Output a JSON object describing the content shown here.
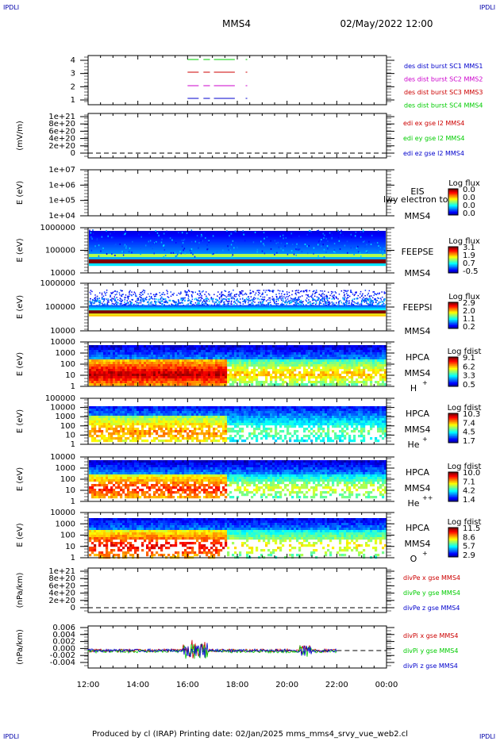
{
  "header": {
    "title": "MMS4",
    "date": "02/May/2022 12:00",
    "corner": "IPDLI"
  },
  "footer": {
    "text": "Produced by cl (IRAP)   Printing date: 02/Jan/2025   mms_mms4_srvy_vue_web2.cl"
  },
  "colors": {
    "blue": "#0000cc",
    "magenta": "#cc00cc",
    "red": "#cc0000",
    "green": "#00cc00"
  },
  "chart_data": {
    "type": "heatmap",
    "x_ticks": [
      "12:00",
      "14:00",
      "16:00",
      "18:00",
      "20:00",
      "22:00",
      "00:00"
    ],
    "panels": [
      {
        "id": "des",
        "type": "line",
        "yticks": [
          "4",
          "3",
          "2",
          "1"
        ],
        "legend": [
          "des dist burst SC1 MMS1",
          "des dist burst SC2 MMS2",
          "des dist burst SC3 MMS3",
          "des dist burst SC4 MMS4"
        ],
        "series": [
          {
            "level": 4,
            "x": [
              16.0,
              18.4
            ]
          },
          {
            "level": 3,
            "x": [
              16.0,
              18.4
            ]
          },
          {
            "level": 2,
            "x": [
              16.0,
              18.4
            ]
          },
          {
            "level": 1,
            "x": [
              16.0,
              18.4
            ]
          }
        ]
      },
      {
        "id": "edi",
        "type": "line",
        "ylabel": "(mV/m)",
        "yticks": [
          "1e+21",
          "8e+20",
          "6e+20",
          "4e+20",
          "2e+20",
          "0"
        ],
        "legend": [
          "edi ex gse l2 MMS4",
          "edi ey gse l2 MMS4",
          "edi ez gse l2 MMS4"
        ]
      },
      {
        "id": "eis",
        "type": "heatmap",
        "ylabel": "E (eV)",
        "yticks": [
          "1e+07",
          "1e+06",
          "1e+05",
          "1e+04"
        ],
        "inst": "EIS",
        "extra": "lwy electron to",
        "sc": "MMS4",
        "cbar_title": "Log flux",
        "cbar_ticks": [
          "0.0",
          "0.0",
          "0.0",
          "0.0"
        ]
      },
      {
        "id": "feepse",
        "type": "heatmap",
        "ylabel": "E (eV)",
        "yticks": [
          "1000000",
          "100000",
          "10000"
        ],
        "inst": "FEEPSE",
        "sc": "MMS4",
        "cbar_title": "Log flux",
        "cbar_ticks": [
          "3.1",
          "1.9",
          "0.7",
          "-0.5"
        ]
      },
      {
        "id": "feepsi",
        "type": "heatmap",
        "ylabel": "E (eV)",
        "yticks": [
          "1000000",
          "100000",
          "10000"
        ],
        "inst": "FEEPSI",
        "sc": "MMS4",
        "cbar_title": "Log flux",
        "cbar_ticks": [
          "2.9",
          "2.0",
          "1.1",
          "0.2"
        ]
      },
      {
        "id": "hpca_h",
        "type": "heatmap",
        "ylabel": "E (eV)",
        "yticks": [
          "10000",
          "1000",
          "100",
          "10",
          "1"
        ],
        "inst": "HPCA",
        "sc": "MMS4",
        "species": "H",
        "sup": "+",
        "cbar_title": "Log fdist",
        "cbar_ticks": [
          "9.1",
          "6.2",
          "3.3",
          "0.5"
        ]
      },
      {
        "id": "hpca_he",
        "type": "heatmap",
        "ylabel": "E (eV)",
        "yticks": [
          "100000",
          "10000",
          "1000",
          "100",
          "10",
          "1"
        ],
        "inst": "HPCA",
        "sc": "MMS4",
        "species": "He",
        "sup": "+",
        "cbar_title": "Log fdist",
        "cbar_ticks": [
          "10.3",
          "7.4",
          "4.5",
          "1.7"
        ]
      },
      {
        "id": "hpca_hepp",
        "type": "heatmap",
        "ylabel": "E (eV)",
        "yticks": [
          "10000",
          "1000",
          "100",
          "10",
          "1"
        ],
        "inst": "HPCA",
        "sc": "MMS4",
        "species": "He",
        "sup": "++",
        "cbar_title": "Log fdist",
        "cbar_ticks": [
          "10.0",
          "7.1",
          "4.2",
          "1.4"
        ]
      },
      {
        "id": "hpca_o",
        "type": "heatmap",
        "ylabel": "E (eV)",
        "yticks": [
          "10000",
          "1000",
          "100",
          "10",
          "1"
        ],
        "inst": "HPCA",
        "sc": "MMS4",
        "species": "O",
        "sup": "+",
        "cbar_title": "Log fdist",
        "cbar_ticks": [
          "11.5",
          "8.6",
          "5.7",
          "2.9"
        ]
      },
      {
        "id": "dive",
        "type": "line",
        "ylabel": "(nPa/km)",
        "yticks": [
          "1e+21",
          "8e+20",
          "6e+20",
          "4e+20",
          "2e+20",
          "0"
        ],
        "legend": [
          "divPe x gse MMS4",
          "divPe y gse MMS4",
          "divPe z gse MMS4"
        ]
      },
      {
        "id": "divi",
        "type": "line",
        "ylabel": "(nPa/km)",
        "yticks": [
          "0.006",
          "0.004",
          "0.002",
          "0.000",
          "-0.002",
          "-0.004"
        ],
        "legend": [
          "divPi x gse MMS4",
          "divPi y gse MMS4",
          "divPi z gse MMS4"
        ],
        "x_range": [
          12.0,
          22.0
        ]
      }
    ]
  }
}
